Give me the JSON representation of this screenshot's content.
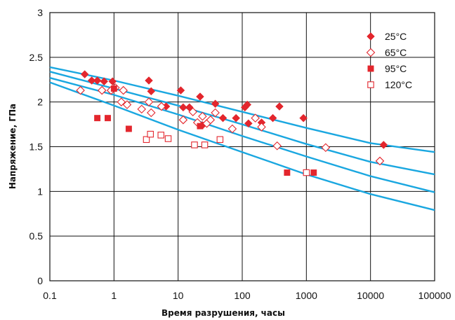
{
  "chart_data": {
    "type": "scatter",
    "title": "",
    "xlabel": "Время разрушения, часы",
    "ylabel": "Напряжение, ГПа",
    "xscale": "log",
    "xlim": [
      0.1,
      100000
    ],
    "ylim": [
      0,
      3
    ],
    "xticks": [
      "0.1",
      "1",
      "10",
      "100",
      "1000",
      "10000",
      "100000"
    ],
    "yticks": [
      "0",
      "0.5",
      "1",
      "1.5",
      "2",
      "2.5",
      "3"
    ],
    "grid": true,
    "legend_position": "top-right",
    "colors": {
      "marker": "#e3262d",
      "curve": "#1aa7e0",
      "grid": "#111111"
    },
    "series": [
      {
        "name": "25°C",
        "marker": "diamond-filled",
        "points": [
          [
            0.35,
            2.31
          ],
          [
            0.45,
            2.24
          ],
          [
            0.55,
            2.24
          ],
          [
            0.7,
            2.23
          ],
          [
            0.95,
            2.23
          ],
          [
            1.0,
            2.15
          ],
          [
            3.5,
            2.24
          ],
          [
            3.8,
            2.12
          ],
          [
            6.5,
            1.95
          ],
          [
            11,
            2.13
          ],
          [
            12,
            1.94
          ],
          [
            15,
            1.94
          ],
          [
            22,
            2.06
          ],
          [
            24,
            1.74
          ],
          [
            38,
            1.98
          ],
          [
            50,
            1.82
          ],
          [
            80,
            1.82
          ],
          [
            110,
            1.94
          ],
          [
            120,
            1.97
          ],
          [
            125,
            1.76
          ],
          [
            200,
            1.77
          ],
          [
            300,
            1.82
          ],
          [
            380,
            1.95
          ],
          [
            900,
            1.82
          ],
          [
            16000,
            1.52
          ]
        ]
      },
      {
        "name": "65°C",
        "marker": "diamond-open",
        "points": [
          [
            0.3,
            2.13
          ],
          [
            0.65,
            2.13
          ],
          [
            0.9,
            2.13
          ],
          [
            1.05,
            2.16
          ],
          [
            1.3,
            2.0
          ],
          [
            1.4,
            2.13
          ],
          [
            1.6,
            1.97
          ],
          [
            2.7,
            1.92
          ],
          [
            3.5,
            2.0
          ],
          [
            3.8,
            1.88
          ],
          [
            5.5,
            1.95
          ],
          [
            12,
            1.8
          ],
          [
            17,
            1.89
          ],
          [
            20,
            1.77
          ],
          [
            24,
            1.84
          ],
          [
            28,
            1.76
          ],
          [
            32,
            1.8
          ],
          [
            38,
            1.88
          ],
          [
            70,
            1.7
          ],
          [
            160,
            1.82
          ],
          [
            200,
            1.72
          ],
          [
            350,
            1.51
          ],
          [
            2000,
            1.49
          ],
          [
            14000,
            1.34
          ]
        ]
      },
      {
        "name": "95°C",
        "marker": "square-filled",
        "points": [
          [
            0.55,
            1.82
          ],
          [
            0.8,
            1.82
          ],
          [
            1.0,
            2.15
          ],
          [
            1.7,
            1.7
          ],
          [
            22,
            1.73
          ],
          [
            500,
            1.21
          ],
          [
            1300,
            1.21
          ]
        ]
      },
      {
        "name": "120°C",
        "marker": "square-open",
        "points": [
          [
            3.2,
            1.58
          ],
          [
            3.7,
            1.64
          ],
          [
            5.4,
            1.63
          ],
          [
            7,
            1.59
          ],
          [
            18,
            1.52
          ],
          [
            26,
            1.52
          ],
          [
            45,
            1.58
          ],
          [
            1000,
            1.21
          ]
        ]
      }
    ],
    "trend_curves": [
      {
        "points": [
          [
            0.1,
            2.39
          ],
          [
            1,
            2.24
          ],
          [
            10,
            2.07
          ],
          [
            100,
            1.89
          ],
          [
            1000,
            1.71
          ],
          [
            10000,
            1.54
          ],
          [
            100000,
            1.44
          ]
        ]
      },
      {
        "points": [
          [
            0.1,
            2.34
          ],
          [
            1,
            2.15
          ],
          [
            10,
            1.96
          ],
          [
            100,
            1.75
          ],
          [
            1000,
            1.53
          ],
          [
            10000,
            1.33
          ],
          [
            100000,
            1.19
          ]
        ]
      },
      {
        "points": [
          [
            0.1,
            2.27
          ],
          [
            1,
            2.08
          ],
          [
            10,
            1.86
          ],
          [
            100,
            1.62
          ],
          [
            1000,
            1.39
          ],
          [
            10000,
            1.17
          ],
          [
            100000,
            0.99
          ]
        ]
      },
      {
        "points": [
          [
            0.1,
            2.22
          ],
          [
            1,
            1.96
          ],
          [
            10,
            1.69
          ],
          [
            100,
            1.44
          ],
          [
            1000,
            1.19
          ],
          [
            10000,
            0.97
          ],
          [
            100000,
            0.79
          ]
        ]
      }
    ]
  }
}
